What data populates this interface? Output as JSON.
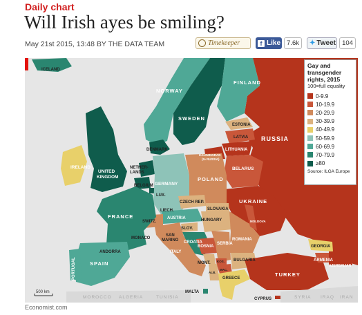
{
  "header": {
    "kicker": "Daily chart",
    "headline": "Will Irish ayes be smiling?",
    "byline": "May 21st 2015, 13:48 BY THE DATA TEAM"
  },
  "share": {
    "timekeeper_label": "Timekeeper",
    "like_label": "Like",
    "like_count": "7.6k",
    "tweet_label": "Tweet",
    "tweet_count": "104"
  },
  "legend": {
    "title_line1": "Gay and",
    "title_line2": "transgender",
    "title_line3": "rights, 2015",
    "subtitle": "100=full equality",
    "bins": [
      {
        "label": "0-9.9",
        "color": "#b5341c"
      },
      {
        "label": "10-19.9",
        "color": "#c9573a"
      },
      {
        "label": "20-29.9",
        "color": "#d08a5c"
      },
      {
        "label": "30-39.9",
        "color": "#dcb27f"
      },
      {
        "label": "40-49.9",
        "color": "#e8d06a"
      },
      {
        "label": "50-59.9",
        "color": "#8ec3b8"
      },
      {
        "label": "60-69.9",
        "color": "#4fa896"
      },
      {
        "label": "70-79.9",
        "color": "#2a8670"
      },
      {
        "label": "≥80",
        "color": "#0f5c4c"
      }
    ],
    "source": "Source: ILGA Europe"
  },
  "map_labels": {
    "iceland": "ICELAND",
    "norway": "NORWAY",
    "sweden": "SWEDEN",
    "finland": "FINLAND",
    "russia": "RUSSIA",
    "estonia": "ESTONIA",
    "latvia": "LATVIA",
    "lithuania": "LITHUANIA",
    "kaliningrad": "KALININGRAD",
    "kaliningrad_note": "(to RUSSIA)",
    "belarus": "BELARUS",
    "denmark": "DENMARK",
    "ireland": "IRELAND",
    "uk": "UNITED",
    "uk2": "KINGDOM",
    "netherlands": "NETHER-",
    "netherlands2": "LANDS",
    "belgium": "BELGIUM",
    "lux": "LUX.",
    "germany": "GERMANY",
    "poland": "POLAND",
    "czech": "CZECH REP.",
    "slovakia": "SLOVAKIA",
    "ukraine": "UKRAINE",
    "france": "FRANCE",
    "liech": "LIECH.",
    "austria": "AUSTRIA",
    "hungary": "HUNGARY",
    "switz": "SWITZ.",
    "slov": "SLOV.",
    "romania": "ROMANIA",
    "moldova": "MOLDOVA",
    "croatia": "CROATIA",
    "bosnia": "BOSNIA",
    "serbia": "SERBIA",
    "san_marino": "SAN",
    "san_marino2": "MARINO",
    "monaco": "MONACO",
    "andorra": "ANDORRA",
    "italy": "ITALY",
    "mont": "MONT.",
    "kos": "KOS.",
    "mac": "MAC.",
    "alb": "ALB.",
    "bulgaria": "BULGARIA",
    "portugal": "PORTUGAL",
    "spain": "SPAIN",
    "greece": "GREECE",
    "turkey": "TURKEY",
    "georgia": "GEORGIA",
    "armenia": "ARMENIA",
    "azerbaijan": "AZERBAIJAN",
    "malta": "MALTA",
    "cyprus": "CYPRUS",
    "morocco": "MOROCCO",
    "algeria": "ALGERIA",
    "tunisia": "TUNISIA",
    "syria": "SYRIA",
    "iraq": "IRAQ",
    "iran": "IRAN",
    "scale": "500 km"
  },
  "footer": "Economist.com"
}
